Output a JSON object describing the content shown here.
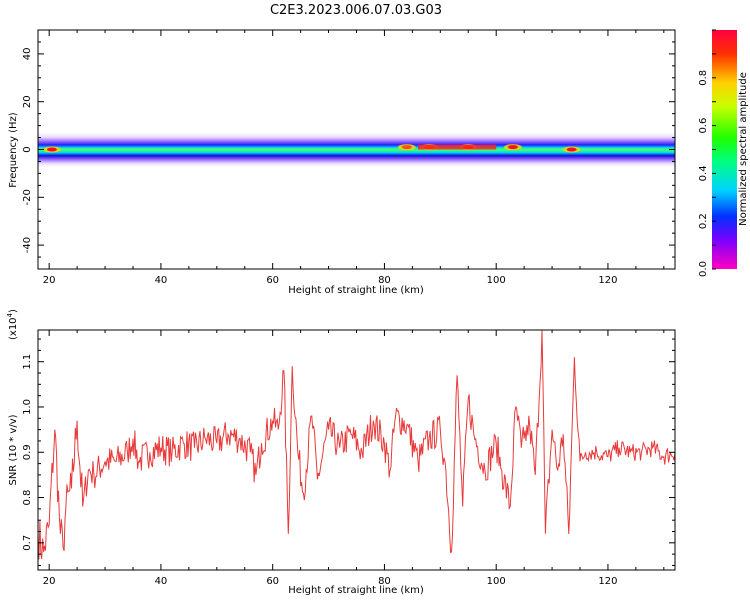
{
  "title": "C2E3.2023.006.07.03.G03",
  "chart_data": [
    {
      "type": "heatmap",
      "xlabel": "Height of straight line (km)",
      "ylabel": "Frequency (Hz)",
      "xlim": [
        18,
        132
      ],
      "ylim": [
        -50,
        50
      ],
      "xticks": [
        20,
        40,
        60,
        80,
        100,
        120
      ],
      "yticks": [
        40,
        20,
        0,
        -20,
        -40
      ],
      "band_frequency_hz": 0,
      "band_halfwidth_hz": [
        -4,
        4
      ],
      "peaks": [
        {
          "x": 20.5,
          "y": 0,
          "amplitude": 0.9
        },
        {
          "x": 84,
          "y": 1,
          "amplitude": 0.85
        },
        {
          "x": 88,
          "y": 1,
          "amplitude": 0.8
        },
        {
          "x": 95,
          "y": 1,
          "amplitude": 0.9
        },
        {
          "x": 103,
          "y": 1,
          "amplitude": 0.9
        },
        {
          "x": 113.5,
          "y": 0,
          "amplitude": 0.9
        }
      ],
      "colorbar": {
        "label": "Normalized spectral amplitude",
        "range": [
          0,
          1
        ],
        "ticks": [
          0.0,
          0.2,
          0.4,
          0.6,
          0.8
        ],
        "tick_labels": [
          "0.0",
          "0.2",
          "0.4",
          "0.6",
          "0.8"
        ],
        "colormap": "gist_rainbow_r"
      }
    },
    {
      "type": "line",
      "xlabel": "Height of straight line (km)",
      "ylabel": "SNR (10 * v/v)",
      "multiplier_label": "(x10",
      "multiplier_exponent": "4",
      "multiplier_close": ")",
      "xlim": [
        18,
        132
      ],
      "ylim": [
        0.64,
        1.17
      ],
      "xticks": [
        20,
        40,
        60,
        80,
        100,
        120
      ],
      "yticks": [
        0.7,
        0.8,
        0.9,
        1.0,
        1.1
      ],
      "ytick_labels": [
        "0.7",
        "0.8",
        "0.9",
        "1.0",
        "1.1"
      ],
      "color": "#e83a3a",
      "series": [
        {
          "values": [
            [
              18,
              0.72
            ],
            [
              19,
              0.68
            ],
            [
              20,
              0.74
            ],
            [
              21,
              0.95
            ],
            [
              22,
              0.72
            ],
            [
              22.5,
              0.69
            ],
            [
              23,
              0.78
            ],
            [
              24,
              0.82
            ],
            [
              25,
              0.97
            ],
            [
              26,
              0.78
            ],
            [
              27,
              0.86
            ],
            [
              28,
              0.85
            ],
            [
              30,
              0.88
            ],
            [
              32,
              0.88
            ],
            [
              34,
              0.9
            ],
            [
              35,
              0.93
            ],
            [
              36,
              0.88
            ],
            [
              38,
              0.9
            ],
            [
              40,
              0.91
            ],
            [
              42,
              0.9
            ],
            [
              44,
              0.92
            ],
            [
              46,
              0.91
            ],
            [
              48,
              0.93
            ],
            [
              50,
              0.92
            ],
            [
              52,
              0.94
            ],
            [
              54,
              0.93
            ],
            [
              56,
              0.9
            ],
            [
              57,
              0.85
            ],
            [
              58,
              0.92
            ],
            [
              60,
              0.97
            ],
            [
              61,
              0.95
            ],
            [
              62,
              1.08
            ],
            [
              62.8,
              0.72
            ],
            [
              63.5,
              1.09
            ],
            [
              64.5,
              0.9
            ],
            [
              65.5,
              0.81
            ],
            [
              67,
              0.98
            ],
            [
              68,
              0.84
            ],
            [
              70,
              0.95
            ],
            [
              72,
              0.91
            ],
            [
              74,
              0.94
            ],
            [
              76,
              0.9
            ],
            [
              78,
              0.97
            ],
            [
              80,
              0.92
            ],
            [
              81,
              0.86
            ],
            [
              82,
              0.98
            ],
            [
              84,
              0.96
            ],
            [
              86,
              0.88
            ],
            [
              88,
              0.93
            ],
            [
              90,
              0.95
            ],
            [
              91,
              0.86
            ],
            [
              92,
              0.68
            ],
            [
              93,
              1.07
            ],
            [
              94,
              0.78
            ],
            [
              95,
              1.02
            ],
            [
              96,
              0.94
            ],
            [
              98,
              0.86
            ],
            [
              100,
              0.92
            ],
            [
              101,
              0.86
            ],
            [
              102.5,
              0.78
            ],
            [
              103.5,
              1.0
            ],
            [
              104.5,
              0.91
            ],
            [
              105,
              0.93
            ],
            [
              106,
              0.96
            ],
            [
              107,
              0.85
            ],
            [
              108.2,
              1.17
            ],
            [
              108.8,
              0.72
            ],
            [
              110,
              0.95
            ],
            [
              111,
              0.86
            ],
            [
              112,
              0.94
            ],
            [
              113,
              0.72
            ],
            [
              114,
              1.11
            ],
            [
              115,
              0.88
            ],
            [
              116,
              0.9
            ],
            [
              118,
              0.9
            ],
            [
              120,
              0.89
            ],
            [
              122,
              0.91
            ],
            [
              124,
              0.9
            ],
            [
              126,
              0.9
            ],
            [
              128,
              0.91
            ],
            [
              130,
              0.89
            ],
            [
              132,
              0.9
            ]
          ]
        }
      ]
    }
  ]
}
